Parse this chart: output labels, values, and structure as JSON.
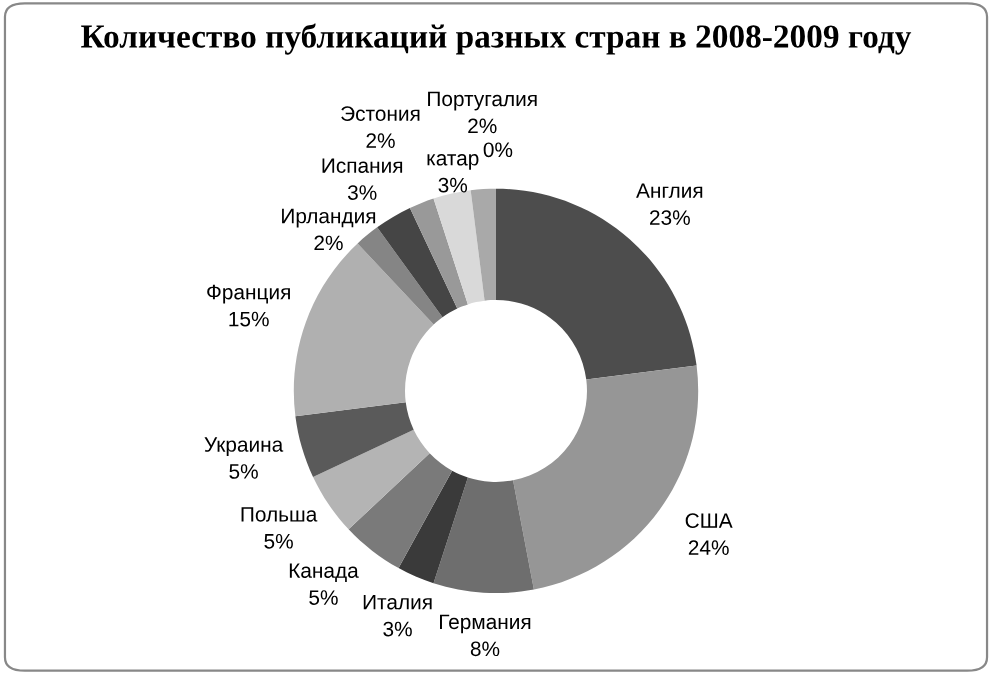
{
  "chart_data": {
    "type": "donut",
    "title": "Количество публикаций разных стран в 2008-2009 году",
    "categories": [
      "Англия",
      "США",
      "Германия",
      "Италия",
      "Канада",
      "Польша",
      "Украина",
      "Франция",
      "Ирландия",
      "Испания",
      "Эстония",
      "катар",
      "Португалия",
      null
    ],
    "values": [
      23,
      24,
      8,
      3,
      5,
      5,
      5,
      15,
      2,
      3,
      2,
      3,
      2,
      0
    ],
    "value_labels": [
      "23%",
      "24%",
      "8%",
      "3%",
      "5%",
      "5%",
      "5%",
      "15%",
      "2%",
      "3%",
      "2%",
      "3%",
      "2%",
      "0%"
    ],
    "colors": [
      "#4d4d4d",
      "#969696",
      "#6e6e6e",
      "#3a3a3a",
      "#7a7a7a",
      "#b4b4b4",
      "#5a5a5a",
      "#b0b0b0",
      "#858585",
      "#454545",
      "#999999",
      "#d9d9d9",
      "#a9a9a9",
      "#cccccc"
    ],
    "legend": false
  }
}
